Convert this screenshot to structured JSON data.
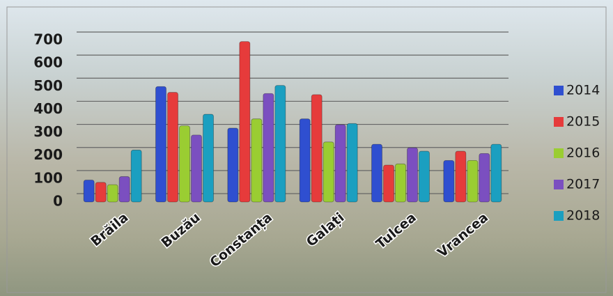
{
  "chart_data": {
    "type": "bar",
    "categories": [
      "Brăila",
      "Buzău",
      "Constanța",
      "Galați",
      "Tulcea",
      "Vrancea"
    ],
    "series": [
      {
        "name": "2014",
        "color": "#2f4fd0",
        "values": [
          95,
          500,
          320,
          360,
          250,
          180
        ]
      },
      {
        "name": "2015",
        "color": "#e63b3b",
        "values": [
          85,
          475,
          695,
          465,
          160,
          220
        ]
      },
      {
        "name": "2016",
        "color": "#9acd32",
        "values": [
          75,
          330,
          360,
          260,
          165,
          180
        ]
      },
      {
        "name": "2017",
        "color": "#7b4fc0",
        "values": [
          110,
          290,
          470,
          335,
          235,
          210
        ]
      },
      {
        "name": "2018",
        "color": "#1b9fc0",
        "values": [
          225,
          380,
          505,
          340,
          220,
          250
        ]
      }
    ],
    "ylim": [
      0,
      700
    ],
    "yticks": [
      0,
      100,
      200,
      300,
      400,
      500,
      600,
      700
    ],
    "grid": true,
    "legend": "right"
  }
}
